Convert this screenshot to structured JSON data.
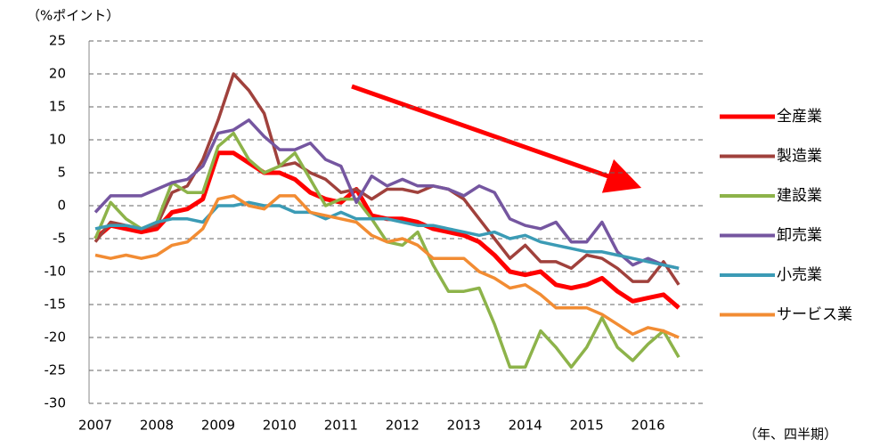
{
  "chart_data": {
    "type": "line",
    "y_label": "（%ポイント）",
    "x_label": "（年、四半期）",
    "categories": [
      "2007",
      null,
      null,
      null,
      "2008",
      null,
      null,
      null,
      "2009",
      null,
      null,
      null,
      "2010",
      null,
      null,
      null,
      "2011",
      null,
      null,
      null,
      "2012",
      null,
      null,
      null,
      "2013",
      null,
      null,
      null,
      "2014",
      null,
      null,
      null,
      "2015",
      null,
      null,
      null,
      "2016",
      null,
      null
    ],
    "ylim": [
      -30,
      25
    ],
    "yticks": [
      -30,
      -25,
      -20,
      -15,
      -10,
      -5,
      0,
      5,
      10,
      15,
      20,
      25
    ],
    "grid": true,
    "legend": "right",
    "series": [
      {
        "name": "全産業",
        "color": "#ff0000",
        "values": [
          -5,
          -3,
          -3.5,
          -4,
          -3.5,
          -1,
          -0.5,
          1,
          8,
          8,
          6.5,
          5,
          5,
          4,
          2,
          1,
          0.5,
          2.5,
          -1.5,
          -2,
          -2,
          -2.5,
          -3.5,
          -4,
          -4.5,
          -5.5,
          -7.5,
          -10,
          -10.5,
          -10,
          -12,
          -12.5,
          -12,
          -11,
          -13,
          -14.5,
          -14,
          -13.5,
          -15.5
        ]
      },
      {
        "name": "製造業",
        "color": "#a0413c",
        "values": [
          -5.5,
          -2.5,
          -3,
          -3.5,
          -3,
          2,
          3,
          7,
          13,
          20,
          17.5,
          14,
          6,
          6.5,
          5,
          4,
          2,
          2.5,
          1,
          2.5,
          2.5,
          2,
          3,
          2.5,
          1,
          -2,
          -5,
          -8,
          -6,
          -8.5,
          -8.5,
          -9.5,
          -7.5,
          -8,
          -9.5,
          -11.5,
          -11.5,
          -8.5,
          -12
        ]
      },
      {
        "name": "建設業",
        "color": "#8db34a",
        "values": [
          -5,
          0.5,
          -2,
          -3.5,
          -2.5,
          3.5,
          2,
          2,
          9,
          11,
          7,
          5,
          6,
          8,
          4,
          0,
          1,
          1,
          -2,
          -5.5,
          -6,
          -4,
          -9,
          -13,
          -13,
          -12.5,
          -18,
          -24.5,
          -24.5,
          -19,
          -21.5,
          -24.5,
          -21.5,
          -17,
          -21.5,
          -23.5,
          -21,
          -19,
          -23
        ]
      },
      {
        "name": "卸売業",
        "color": "#7556a0",
        "values": [
          -1,
          1.5,
          1.5,
          1.5,
          2.5,
          3.5,
          4,
          6,
          11,
          11.5,
          13,
          10.5,
          8.5,
          8.5,
          9.5,
          7,
          6,
          0.5,
          4.5,
          3,
          4,
          3,
          3,
          2.5,
          1.5,
          3,
          2,
          -2,
          -3,
          -3.5,
          -2.5,
          -5.5,
          -5.5,
          -2.5,
          -7,
          -9,
          -8,
          -9,
          -9.5
        ]
      },
      {
        "name": "小売業",
        "color": "#3b9bb5",
        "values": [
          -3.5,
          -3,
          -3,
          -3.5,
          -2.5,
          -2,
          -2,
          -2.5,
          0,
          0,
          0.5,
          0,
          0,
          -1,
          -1,
          -2,
          -1,
          -2,
          -2,
          -2,
          -2.5,
          -3,
          -3,
          -3.5,
          -4,
          -4.5,
          -4,
          -5,
          -4.5,
          -5.5,
          -6,
          -6.5,
          -7,
          -7,
          -7.5,
          -8,
          -8.5,
          -9,
          -9.5
        ]
      },
      {
        "name": "サービス業",
        "color": "#f28c33",
        "values": [
          -7.5,
          -8,
          -7.5,
          -8,
          -7.5,
          -6,
          -5.5,
          -3.5,
          1,
          1.5,
          0,
          -0.5,
          1.5,
          1.5,
          -1,
          -1.5,
          -2,
          -2.5,
          -4.5,
          -5.5,
          -5,
          -6,
          -8,
          -8,
          -8,
          -10,
          -11,
          -12.5,
          -12,
          -13.5,
          -15.5,
          -15.5,
          -15.5,
          -16.5,
          -18,
          -19.5,
          -18.5,
          -19,
          -20
        ]
      }
    ]
  }
}
